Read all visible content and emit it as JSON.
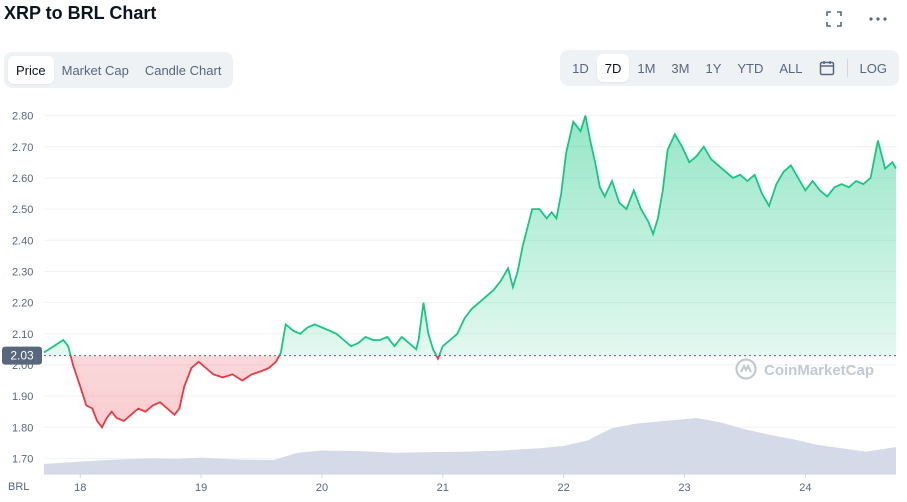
{
  "header": {
    "title": "XRP to BRL Chart",
    "expand_icon": "expand-icon",
    "more_icon": "more-horizontal-icon"
  },
  "chart_tabs": [
    {
      "label": "Price",
      "active": true
    },
    {
      "label": "Market Cap",
      "active": false
    },
    {
      "label": "Candle Chart",
      "active": false
    }
  ],
  "range_tabs": [
    {
      "label": "1D",
      "active": false
    },
    {
      "label": "7D",
      "active": true
    },
    {
      "label": "1M",
      "active": false
    },
    {
      "label": "3M",
      "active": false
    },
    {
      "label": "1Y",
      "active": false
    },
    {
      "label": "YTD",
      "active": false
    },
    {
      "label": "ALL",
      "active": false
    }
  ],
  "calendar_icon": "calendar-icon",
  "log_label": "LOG",
  "colors": {
    "up": "#16c784",
    "down": "#ea3943",
    "volume": "#cfd6e4",
    "current_price_bg": "#58667e"
  },
  "watermark": "CoinMarketCap",
  "chart_data": {
    "type": "line",
    "title": "XRP to BRL Chart",
    "currency_label": "BRL",
    "baseline_price": 2.03,
    "current_price_label": "2.03",
    "y_ticks": [
      "2.80",
      "2.70",
      "2.60",
      "2.50",
      "2.40",
      "2.30",
      "2.20",
      "2.10",
      "2.00",
      "1.90",
      "1.80",
      "1.70"
    ],
    "ylim": [
      1.65,
      2.85
    ],
    "x_ticks": [
      "18",
      "19",
      "20",
      "21",
      "22",
      "23",
      "24"
    ],
    "xlim": [
      17.7,
      24.75
    ],
    "grid": true,
    "series": [
      {
        "x": [
          17.7,
          17.78,
          17.86,
          17.9,
          17.94,
          18.0,
          18.05,
          18.1,
          18.14,
          18.18,
          18.22,
          18.26,
          18.3,
          18.36,
          18.42,
          18.48,
          18.54,
          18.6,
          18.66,
          18.72,
          18.78,
          18.82,
          18.86,
          18.92,
          18.98,
          19.04,
          19.1,
          19.18,
          19.26,
          19.34,
          19.42,
          19.5,
          19.56,
          19.62,
          19.66,
          19.7,
          19.76,
          19.82,
          19.88,
          19.94,
          20.0,
          20.06,
          20.12,
          20.18,
          20.24,
          20.3,
          20.36,
          20.42,
          20.48,
          20.54,
          20.6,
          20.66,
          20.72,
          20.78,
          20.8,
          20.84,
          20.88,
          20.92,
          20.96,
          21.0,
          21.06,
          21.12,
          21.18,
          21.24,
          21.3,
          21.36,
          21.42,
          21.48,
          21.54,
          21.58,
          21.62,
          21.66,
          21.7,
          21.74,
          21.8,
          21.86,
          21.9,
          21.94,
          21.98,
          22.02,
          22.08,
          22.14,
          22.18,
          22.22,
          22.26,
          22.3,
          22.34,
          22.4,
          22.46,
          22.52,
          22.58,
          22.64,
          22.7,
          22.74,
          22.78,
          22.82,
          22.86,
          22.92,
          22.98,
          23.04,
          23.1,
          23.16,
          23.22,
          23.28,
          23.34,
          23.4,
          23.46,
          23.52,
          23.58,
          23.64,
          23.7,
          23.76,
          23.82,
          23.88,
          23.94,
          24.0,
          24.06,
          24.12,
          24.18,
          24.24,
          24.3,
          24.36,
          24.42,
          24.48,
          24.54,
          24.6,
          24.66,
          24.72,
          24.75
        ],
        "y": [
          2.04,
          2.06,
          2.08,
          2.06,
          2.0,
          1.93,
          1.87,
          1.86,
          1.82,
          1.8,
          1.83,
          1.85,
          1.83,
          1.82,
          1.84,
          1.86,
          1.85,
          1.87,
          1.88,
          1.86,
          1.84,
          1.86,
          1.93,
          1.99,
          2.01,
          1.99,
          1.97,
          1.96,
          1.97,
          1.95,
          1.97,
          1.98,
          1.99,
          2.01,
          2.04,
          2.13,
          2.11,
          2.1,
          2.12,
          2.13,
          2.12,
          2.11,
          2.1,
          2.08,
          2.06,
          2.07,
          2.09,
          2.08,
          2.08,
          2.09,
          2.06,
          2.09,
          2.07,
          2.05,
          2.08,
          2.2,
          2.1,
          2.05,
          2.02,
          2.06,
          2.08,
          2.1,
          2.15,
          2.18,
          2.2,
          2.22,
          2.24,
          2.27,
          2.31,
          2.25,
          2.3,
          2.38,
          2.44,
          2.5,
          2.5,
          2.47,
          2.49,
          2.47,
          2.55,
          2.68,
          2.78,
          2.75,
          2.8,
          2.72,
          2.65,
          2.57,
          2.54,
          2.59,
          2.52,
          2.5,
          2.56,
          2.5,
          2.46,
          2.42,
          2.47,
          2.56,
          2.69,
          2.74,
          2.7,
          2.65,
          2.67,
          2.7,
          2.66,
          2.64,
          2.62,
          2.6,
          2.61,
          2.59,
          2.61,
          2.55,
          2.51,
          2.58,
          2.62,
          2.64,
          2.6,
          2.56,
          2.59,
          2.56,
          2.54,
          2.57,
          2.58,
          2.57,
          2.59,
          2.58,
          2.6,
          2.72,
          2.63,
          2.65,
          2.63
        ]
      }
    ],
    "volume": {
      "x": [
        17.7,
        18.0,
        18.3,
        18.6,
        18.8,
        19.0,
        19.3,
        19.6,
        19.8,
        20.0,
        20.3,
        20.6,
        20.9,
        21.2,
        21.5,
        21.8,
        22.0,
        22.2,
        22.4,
        22.6,
        22.8,
        23.0,
        23.1,
        23.3,
        23.5,
        23.7,
        23.9,
        24.1,
        24.3,
        24.5,
        24.75
      ],
      "y": [
        0.18,
        0.22,
        0.26,
        0.28,
        0.27,
        0.29,
        0.26,
        0.25,
        0.38,
        0.42,
        0.41,
        0.38,
        0.39,
        0.4,
        0.42,
        0.46,
        0.5,
        0.6,
        0.82,
        0.9,
        0.94,
        0.98,
        1.0,
        0.92,
        0.8,
        0.7,
        0.62,
        0.52,
        0.46,
        0.4,
        0.48
      ]
    }
  }
}
